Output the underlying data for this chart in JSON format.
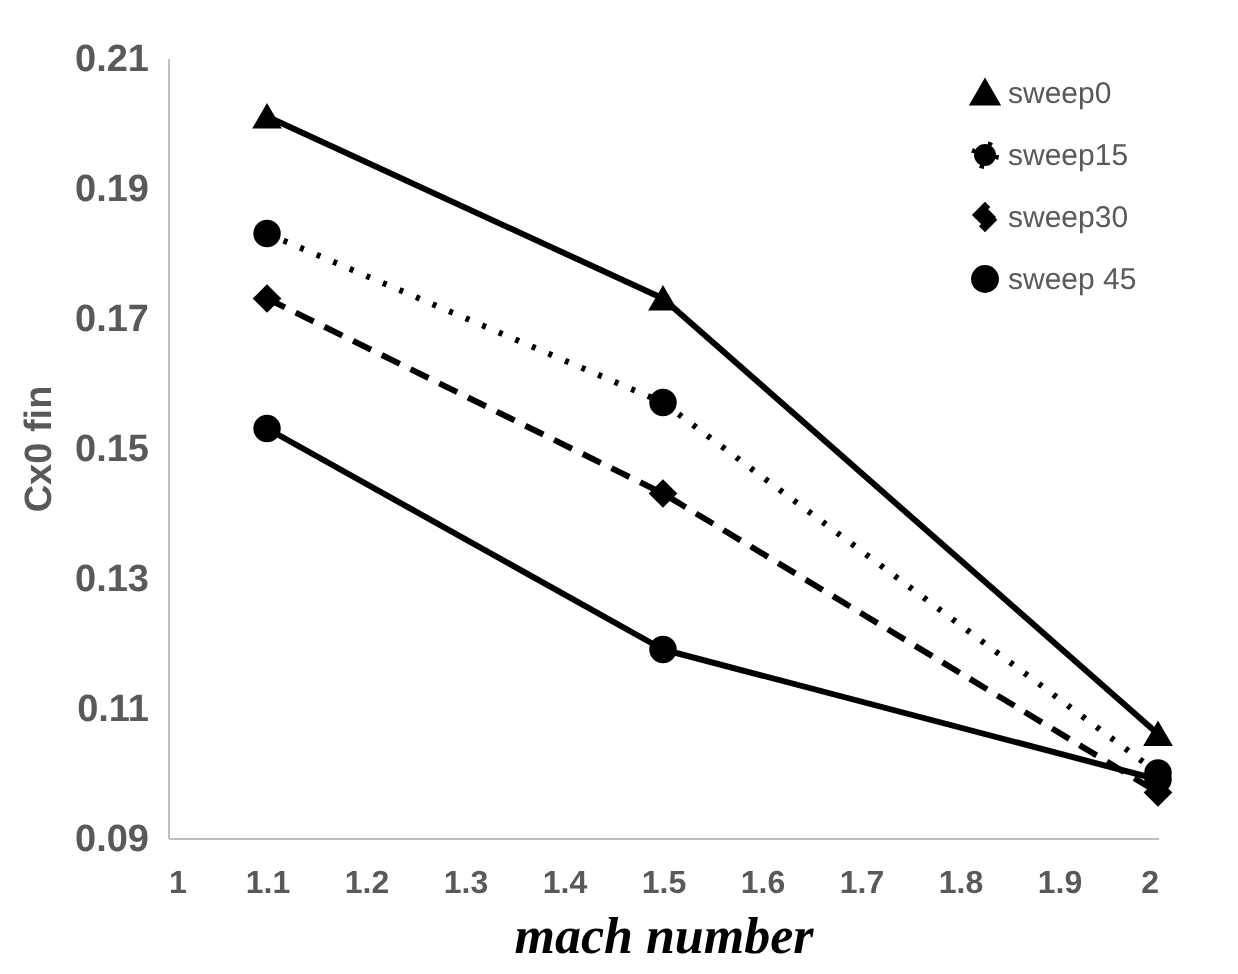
{
  "chart_data": {
    "type": "line",
    "xlabel": "mach number",
    "ylabel": "Cx0 fin",
    "x": [
      1.1,
      1.5,
      2
    ],
    "series": [
      {
        "name": "sweep0",
        "color": "#000000",
        "values": [
          0.201,
          0.173,
          0.106
        ],
        "marker": "triangle",
        "line_style": "solid"
      },
      {
        "name": "sweep15",
        "color": "#000000",
        "values": [
          0.183,
          0.157,
          0.1
        ],
        "marker": "circle",
        "line_style": "dotted"
      },
      {
        "name": "sweep30",
        "color": "#000000",
        "values": [
          0.173,
          0.143,
          0.097
        ],
        "marker": "diamond",
        "line_style": "dashed"
      },
      {
        "name": "sweep 45",
        "color": "#000000",
        "values": [
          0.153,
          0.119,
          0.099
        ],
        "marker": "circle",
        "line_style": "solid"
      }
    ],
    "xlim": [
      1,
      2
    ],
    "xticks": [
      1,
      1.1,
      1.2,
      1.3,
      1.4,
      1.5,
      1.6,
      1.7,
      1.8,
      1.9,
      2
    ],
    "ylim": [
      0.09,
      0.21
    ],
    "yticks": [
      0.09,
      0.11,
      0.13,
      0.15,
      0.17,
      0.19,
      0.21
    ],
    "grid": false,
    "legend": "top right"
  }
}
